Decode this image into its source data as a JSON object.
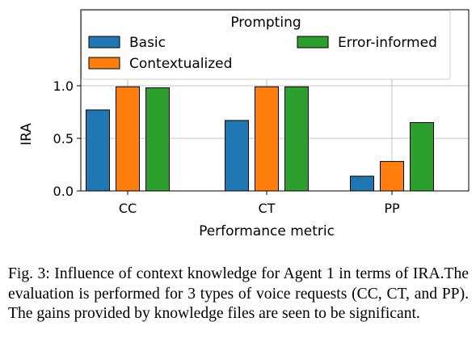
{
  "chart_data": {
    "type": "bar",
    "categories": [
      "CC",
      "CT",
      "PP"
    ],
    "series": [
      {
        "name": "Basic",
        "values": [
          0.77,
          0.67,
          0.14
        ],
        "color": "#1f77b4"
      },
      {
        "name": "Contextualized",
        "values": [
          0.99,
          0.99,
          0.28
        ],
        "color": "#ff7f0e"
      },
      {
        "name": "Error-informed",
        "values": [
          0.98,
          0.99,
          0.65
        ],
        "color": "#2ca02c"
      }
    ],
    "xlabel": "Performance metric",
    "ylabel": "IRA",
    "ylim": [
      0,
      1.0
    ],
    "yticks": [
      "0.0",
      "0.5",
      "1.0"
    ],
    "legend_title": "Prompting",
    "legend_position": "top",
    "grid": true
  },
  "caption": "Fig. 3: Influence of context knowledge for Agent 1 in terms of IRA.The evaluation is performed for 3 types of voice requests (CC, CT, and PP). The gains provided by knowledge files are seen to be significant."
}
